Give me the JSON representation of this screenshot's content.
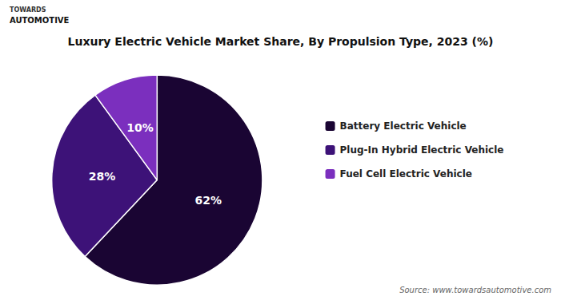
{
  "chart_data": {
    "type": "pie",
    "title": "Luxury Electric Vehicle Market Share, By Propulsion Type, 2023 (%)",
    "categories": [
      "Battery Electric Vehicle",
      "Plug-In Hybrid Electric Vehicle",
      "Fuel Cell Electric Vehicle"
    ],
    "values": [
      62,
      28,
      10
    ],
    "value_labels": [
      "62%",
      "28%",
      "10%"
    ],
    "colors": [
      "#1a0533",
      "#3d1278",
      "#7b2fbe"
    ],
    "data_labels": true,
    "legend": "right",
    "annotations": [
      "Source: www.towardsautomotive.com",
      "TOWARDS",
      "AUTOMOTIVE"
    ]
  }
}
